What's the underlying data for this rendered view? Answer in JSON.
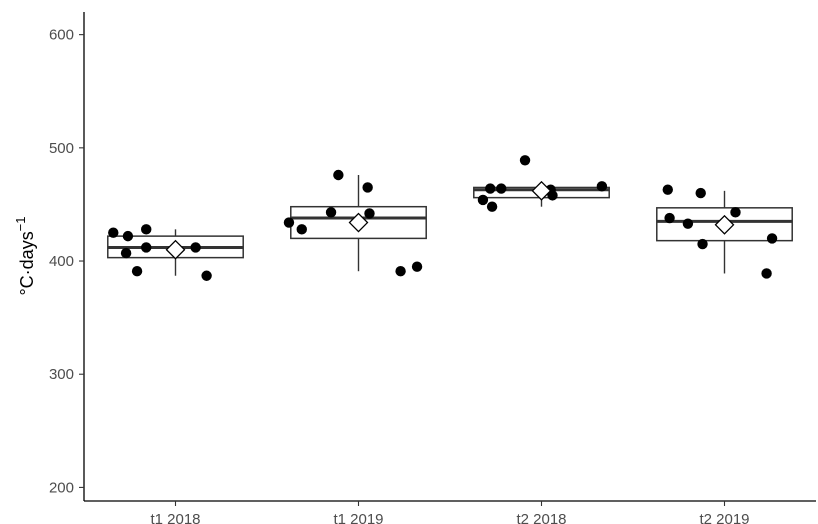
{
  "chart_data": {
    "type": "box",
    "xlabel": "",
    "ylabel": "°C·days",
    "ylabel_superscript": "−1",
    "ylim": [
      188,
      620
    ],
    "yticks": [
      200,
      300,
      400,
      500,
      600
    ],
    "ytick_labels": [
      "200",
      "300",
      "400",
      "500",
      "600"
    ],
    "categories": [
      "t1 2018",
      "t1 2019",
      "t2 2018",
      "t2 2019"
    ],
    "grid": false,
    "boxes": [
      {
        "whisker_low": 387,
        "q1": 403,
        "median": 412,
        "q3": 422,
        "whisker_high": 428,
        "mean": 410
      },
      {
        "whisker_low": 391,
        "q1": 420,
        "median": 438,
        "q3": 448,
        "whisker_high": 476,
        "mean": 434
      },
      {
        "whisker_low": 448,
        "q1": 456,
        "median": 463,
        "q3": 465,
        "whisker_high": 466,
        "mean": 462
      },
      {
        "whisker_low": 389,
        "q1": 418,
        "median": 435,
        "q3": 447,
        "whisker_high": 462,
        "mean": 432
      }
    ],
    "points": [
      [
        {
          "offset": -0.34,
          "y": 425
        },
        {
          "offset": -0.26,
          "y": 422
        },
        {
          "offset": -0.27,
          "y": 407
        },
        {
          "offset": -0.21,
          "y": 391
        },
        {
          "offset": -0.16,
          "y": 428
        },
        {
          "offset": -0.16,
          "y": 412
        },
        {
          "offset": 0.11,
          "y": 412
        },
        {
          "offset": 0.17,
          "y": 387
        }
      ],
      [
        {
          "offset": -0.38,
          "y": 434
        },
        {
          "offset": -0.31,
          "y": 428
        },
        {
          "offset": -0.15,
          "y": 443
        },
        {
          "offset": -0.11,
          "y": 476
        },
        {
          "offset": 0.05,
          "y": 465
        },
        {
          "offset": 0.06,
          "y": 442
        },
        {
          "offset": 0.23,
          "y": 391
        },
        {
          "offset": 0.32,
          "y": 395
        }
      ],
      [
        {
          "offset": -0.32,
          "y": 454
        },
        {
          "offset": -0.28,
          "y": 464
        },
        {
          "offset": -0.27,
          "y": 448
        },
        {
          "offset": -0.22,
          "y": 464
        },
        {
          "offset": -0.09,
          "y": 489
        },
        {
          "offset": 0.05,
          "y": 463
        },
        {
          "offset": 0.06,
          "y": 458
        },
        {
          "offset": 0.33,
          "y": 466
        }
      ],
      [
        {
          "offset": -0.31,
          "y": 463
        },
        {
          "offset": -0.3,
          "y": 438
        },
        {
          "offset": -0.2,
          "y": 433
        },
        {
          "offset": -0.12,
          "y": 415
        },
        {
          "offset": -0.13,
          "y": 460
        },
        {
          "offset": 0.06,
          "y": 443
        },
        {
          "offset": 0.23,
          "y": 389
        },
        {
          "offset": 0.26,
          "y": 420
        }
      ]
    ]
  }
}
